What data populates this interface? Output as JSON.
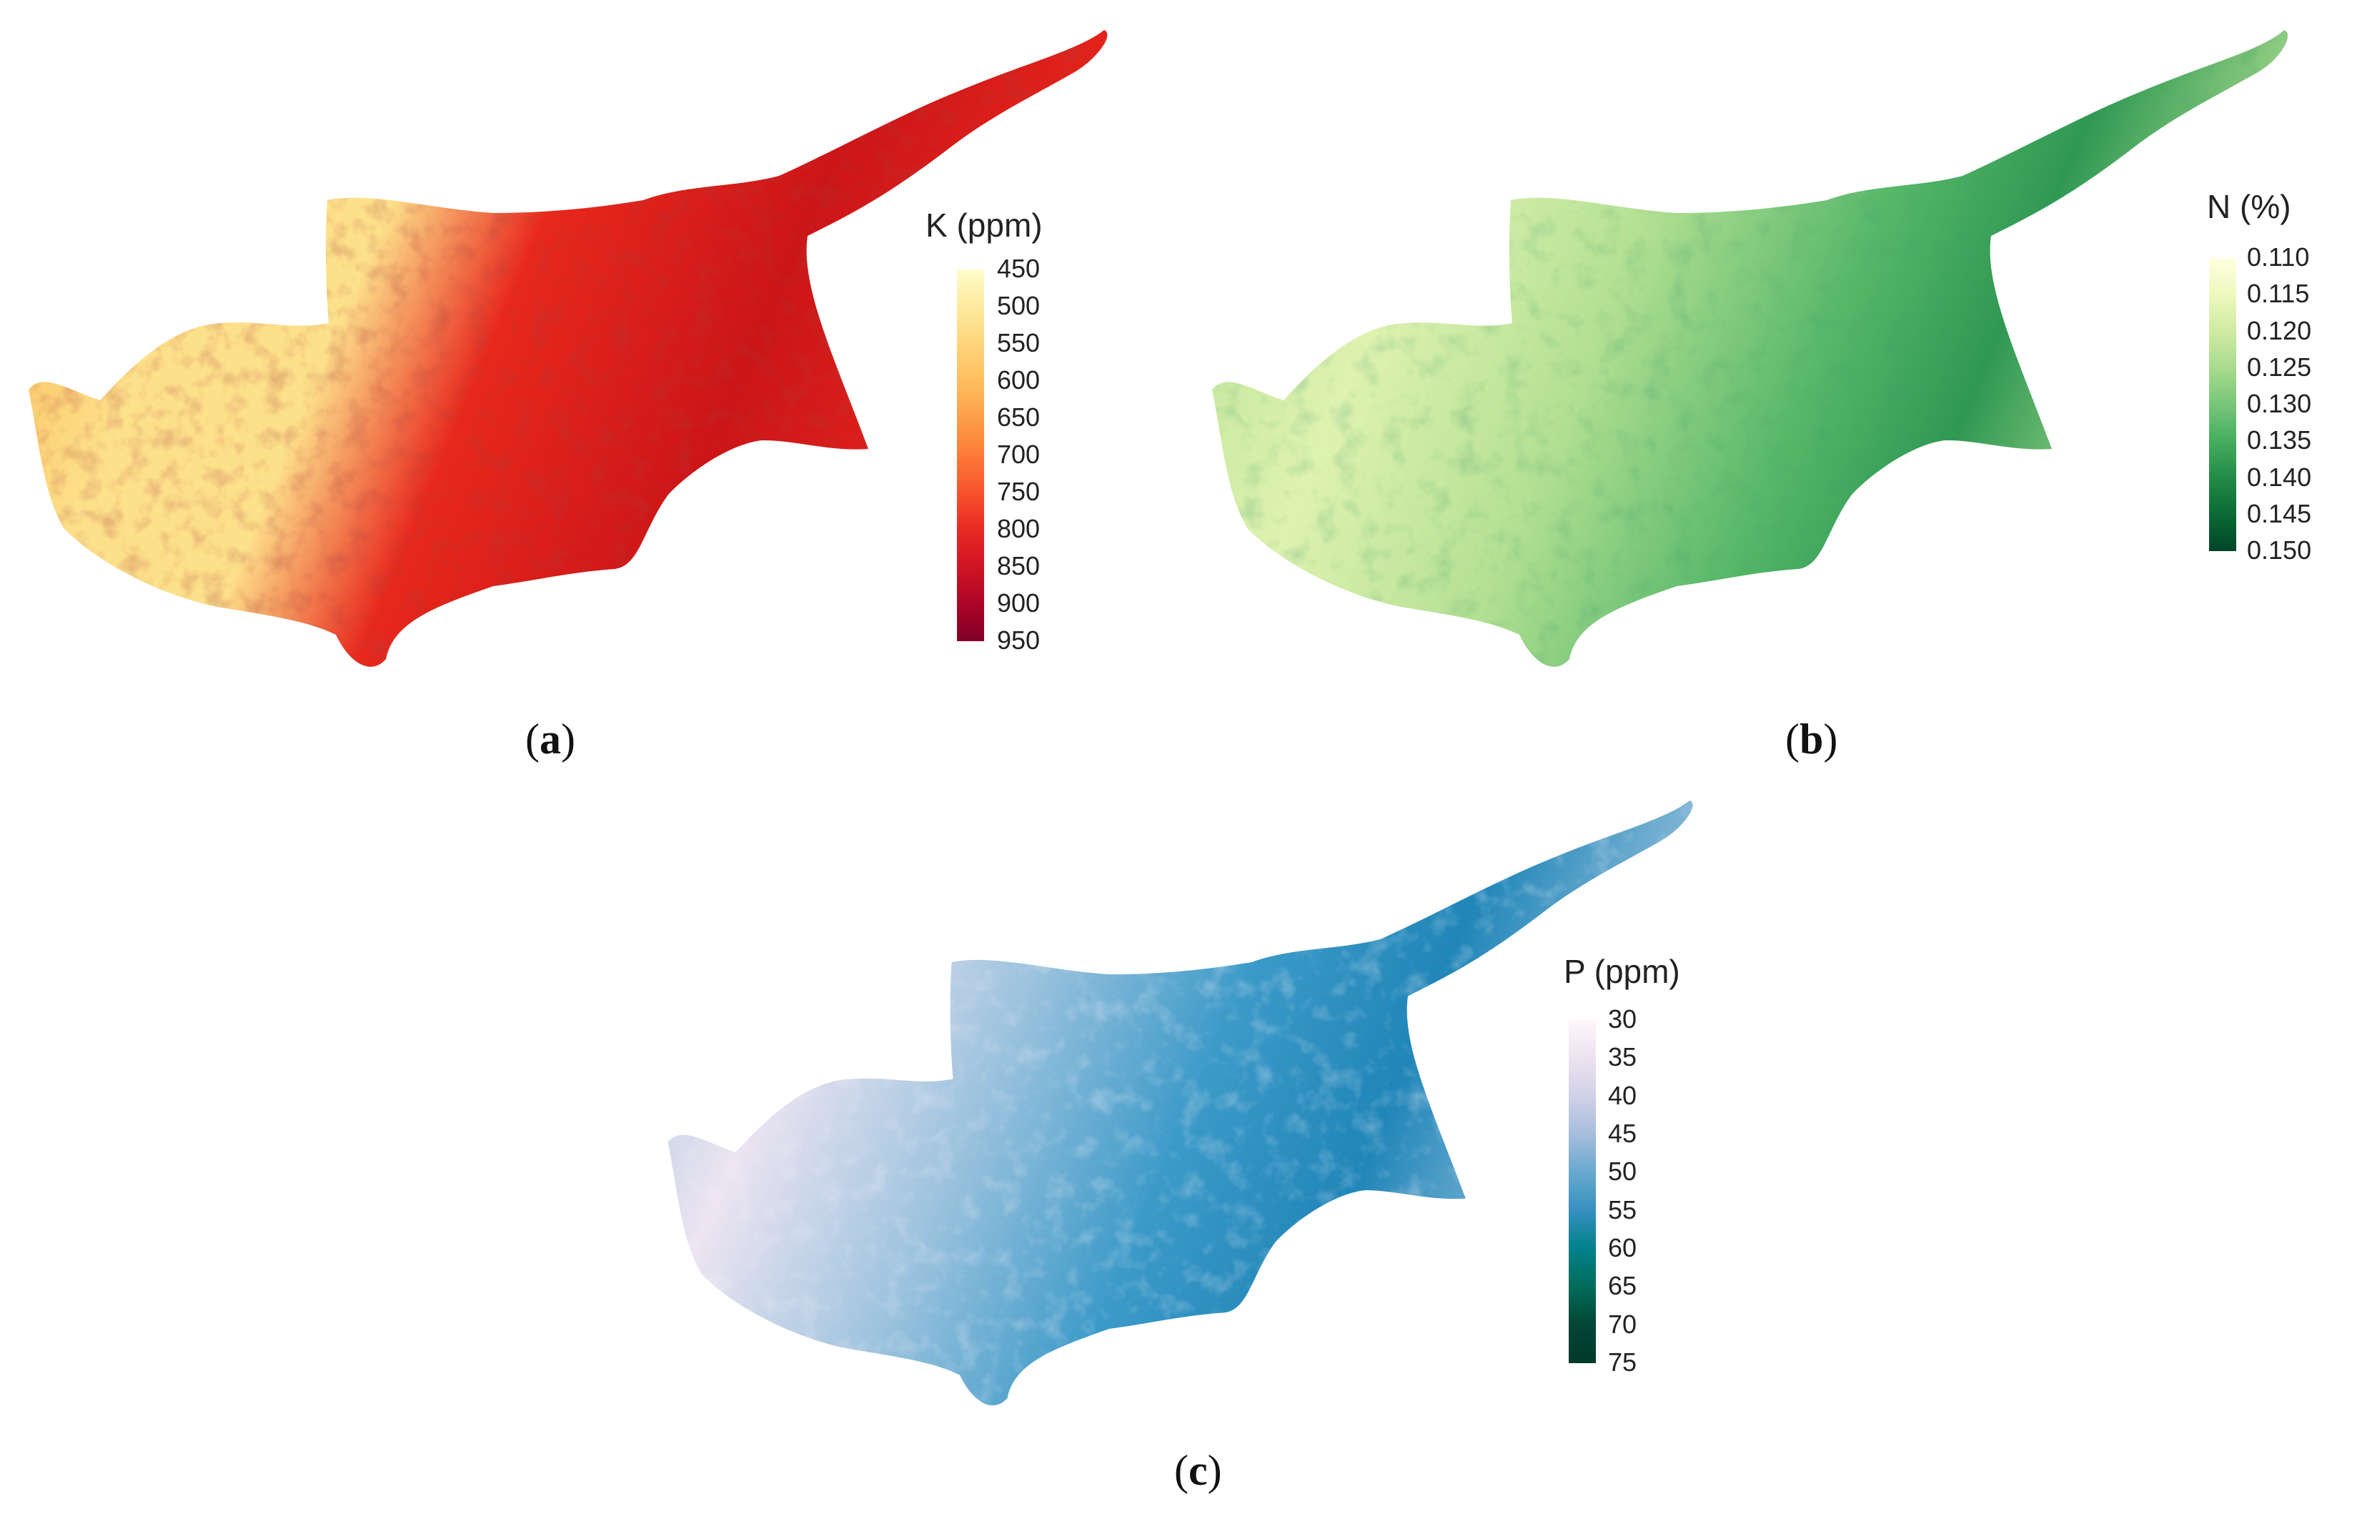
{
  "panels": [
    {
      "id": "a",
      "caption_letter": "a",
      "legend_title": "K (ppm)",
      "ticks": [
        "450",
        "500",
        "550",
        "600",
        "650",
        "700",
        "750",
        "800",
        "850",
        "900",
        "950"
      ],
      "gradient": [
        "#fffccc",
        "#feeaa0",
        "#fed57a",
        "#febe5f",
        "#fd9f48",
        "#fc7a36",
        "#f8522c",
        "#e82a24",
        "#d01424",
        "#ad0527",
        "#800026"
      ],
      "map_colors": {
        "base": "#f9b04b",
        "light": "#fde08a",
        "dark": "#e8281c",
        "darkest": "#cc1518"
      }
    },
    {
      "id": "b",
      "caption_letter": "b",
      "legend_title": "N (%)",
      "ticks": [
        "0.110",
        "0.115",
        "0.120",
        "0.125",
        "0.130",
        "0.135",
        "0.140",
        "0.145",
        "0.150"
      ],
      "gradient": [
        "#ffffe0",
        "#eef8bf",
        "#cfeaa0",
        "#a8db8c",
        "#77c679",
        "#45ad5f",
        "#228b45",
        "#0b6a35",
        "#004529"
      ],
      "map_colors": {
        "base": "#b3e093",
        "light": "#dff2b0",
        "dark": "#58b86a",
        "darkest": "#2f9852"
      }
    },
    {
      "id": "c",
      "caption_letter": "c",
      "legend_title": "P (ppm)",
      "ticks": [
        "30",
        "35",
        "40",
        "45",
        "50",
        "55",
        "60",
        "65",
        "70",
        "75"
      ],
      "gradient": [
        "#fff7fb",
        "#ece2f0",
        "#d0d1e6",
        "#a6bddb",
        "#67a9cf",
        "#3690c0",
        "#02818a",
        "#016c59",
        "#014636",
        "#003a2a"
      ],
      "map_colors": {
        "base": "#9dc3de",
        "light": "#ece4f1",
        "dark": "#3c9ac8",
        "darkest": "#2086b8"
      }
    }
  ]
}
